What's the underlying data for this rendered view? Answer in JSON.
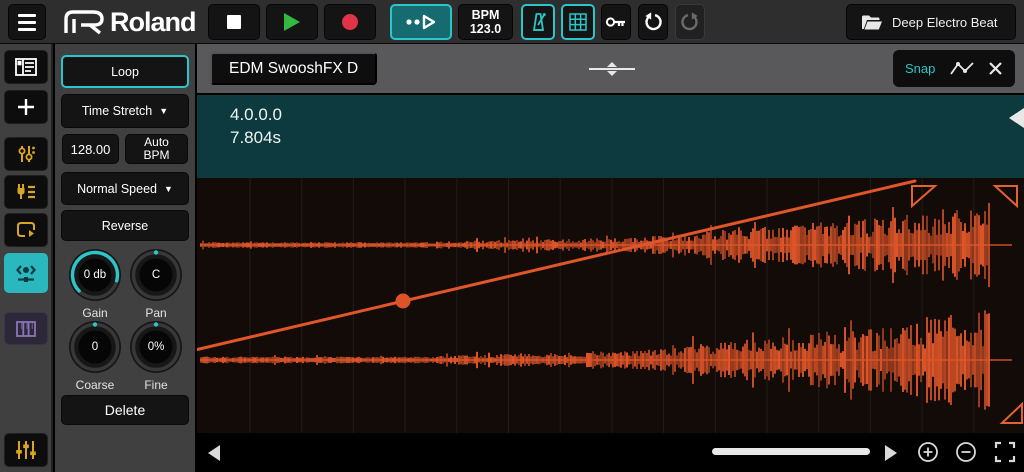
{
  "topbar": {
    "brand": "Roland",
    "bpm_label": "BPM",
    "bpm_value": "123.0",
    "project_name": "Deep Electro Beat"
  },
  "panel": {
    "loop_label": "Loop",
    "stretch_mode": "Time Stretch",
    "dropdown_arrow": "▼",
    "bpm_field": "128.00",
    "auto_bpm": "Auto BPM",
    "speed_mode": "Normal Speed",
    "reverse_label": "Reverse",
    "knobs": [
      {
        "label": "Gain",
        "value": "0 db"
      },
      {
        "label": "Pan",
        "value": "C"
      },
      {
        "label": "Coarse",
        "value": "0"
      },
      {
        "label": "Fine",
        "value": "0%"
      }
    ],
    "delete_label": "Delete"
  },
  "editor": {
    "clip_name": "EDM SwooshFX D",
    "snap_label": "Snap",
    "position": "4.0.0.0",
    "duration": "7.804s"
  },
  "colors": {
    "accent_teal": "#2cc5c9",
    "info_teal_bg": "#0c3a3f",
    "waveform_orange": "#e0562a",
    "icon_yellow": "#d9a621",
    "record_red": "#e23349",
    "play_green": "#33b841",
    "piano_purple": "#8a76b8"
  }
}
